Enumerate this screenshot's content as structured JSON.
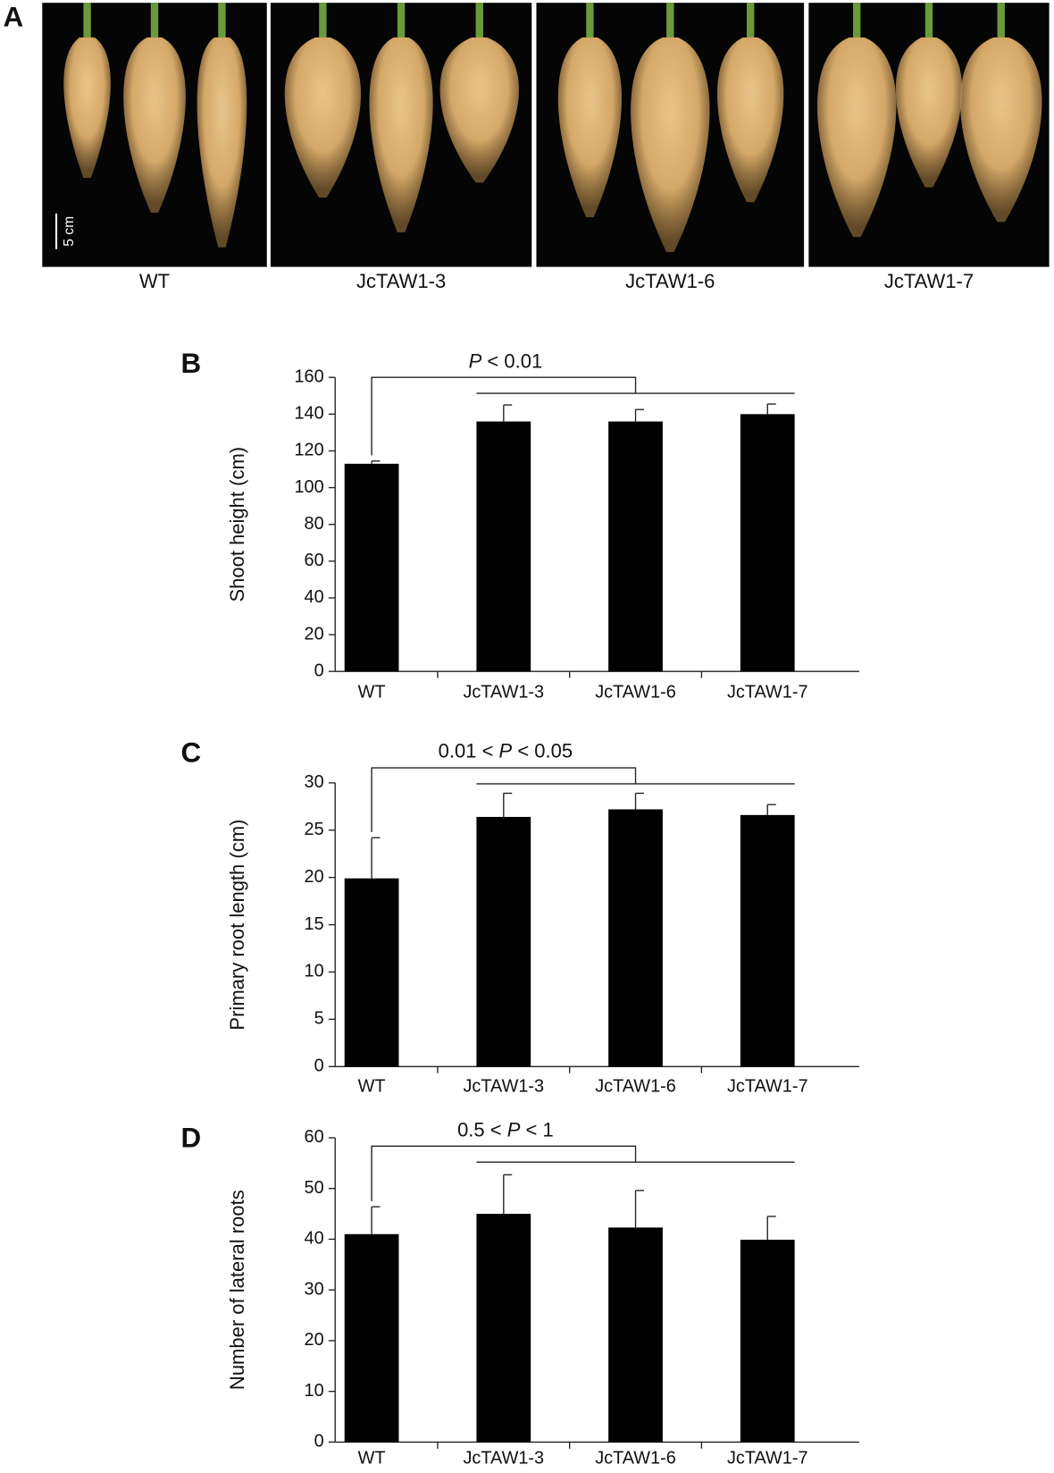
{
  "panel_a": {
    "label": "A",
    "scale_bar": "5 cm",
    "labels": [
      "WT",
      "JcTAW1-3",
      "JcTAW1-6",
      "JcTAW1-7"
    ]
  },
  "chart_data": [
    {
      "type": "bar",
      "label": "B",
      "annotation": "P < 0.01",
      "ylabel": "Shoot height (cm)",
      "categories": [
        "WT",
        "JcTAW1-3",
        "JcTAW1-6",
        "JcTAW1-7"
      ],
      "values": [
        113,
        136,
        136,
        140
      ],
      "errors": [
        1.5,
        9,
        6.5,
        5.5
      ],
      "color": "#000000",
      "ylim": [
        0,
        160
      ],
      "yticks": [
        0,
        20,
        40,
        60,
        80,
        100,
        120,
        140,
        160
      ],
      "grid": false
    },
    {
      "type": "bar",
      "label": "C",
      "annotation": "0.01 < P < 0.05",
      "ylabel": "Primary root length (cm)",
      "categories": [
        "WT",
        "JcTAW1-3",
        "JcTAW1-6",
        "JcTAW1-7"
      ],
      "values": [
        19.9,
        26.4,
        27.2,
        26.6
      ],
      "errors": [
        4.3,
        2.5,
        1.7,
        1.1
      ],
      "color": "#000000",
      "ylim": [
        0,
        30
      ],
      "yticks": [
        0,
        5,
        10,
        15,
        20,
        25,
        30
      ],
      "grid": false
    },
    {
      "type": "bar",
      "label": "D",
      "annotation": "0.5 < P < 1",
      "ylabel": "Number of lateral roots",
      "categories": [
        "WT",
        "JcTAW1-3",
        "JcTAW1-6",
        "JcTAW1-7"
      ],
      "values": [
        41,
        45,
        42.3,
        39.9
      ],
      "errors": [
        5.4,
        7.7,
        7.3,
        4.6
      ],
      "color": "#000000",
      "ylim": [
        0,
        60
      ],
      "yticks": [
        0,
        10,
        20,
        30,
        40,
        50,
        60
      ],
      "grid": false
    }
  ]
}
